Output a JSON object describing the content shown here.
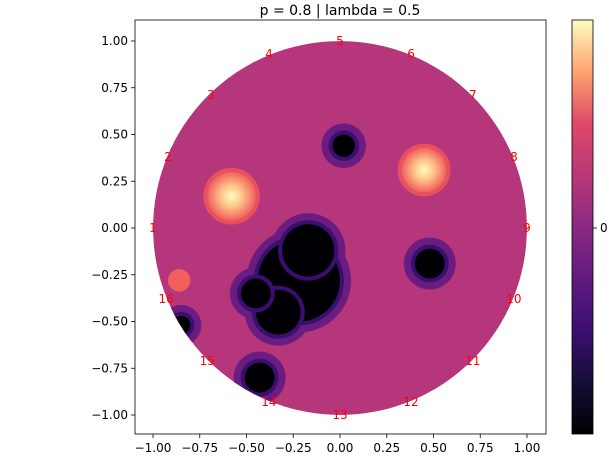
{
  "chart_data": {
    "type": "heatmap",
    "title": "p = 0.8 | lambda = 0.5",
    "xlabel": "",
    "ylabel": "",
    "xlim": [
      -1.1,
      1.1
    ],
    "ylim": [
      -1.1,
      1.1
    ],
    "x_ticks": [
      -1.0,
      -0.75,
      -0.5,
      -0.25,
      0.0,
      0.25,
      0.5,
      0.75,
      1.0
    ],
    "x_tick_labels": [
      "−1.00",
      "−0.75",
      "−0.50",
      "−0.25",
      "0.00",
      "0.25",
      "0.50",
      "0.75",
      "1.00"
    ],
    "y_ticks": [
      1.0,
      0.75,
      0.5,
      0.25,
      0.0,
      -0.25,
      -0.5,
      -0.75,
      -1.0
    ],
    "y_tick_labels": [
      "1.00",
      "0.75",
      "0.50",
      "0.25",
      "0.00",
      "−0.25",
      "−0.50",
      "−0.75",
      "−1.00"
    ],
    "colormap": "magma",
    "background_value_color": "#b5367a",
    "colorbar": {
      "tick_labels": [
        "0"
      ]
    },
    "electrodes": [
      {
        "label": "1",
        "x": -1.0,
        "y": 0.0
      },
      {
        "label": "2",
        "x": -0.92,
        "y": 0.38
      },
      {
        "label": "3",
        "x": -0.69,
        "y": 0.71
      },
      {
        "label": "4",
        "x": -0.38,
        "y": 0.93
      },
      {
        "label": "5",
        "x": 0.0,
        "y": 1.0
      },
      {
        "label": "6",
        "x": 0.38,
        "y": 0.93
      },
      {
        "label": "7",
        "x": 0.71,
        "y": 0.71
      },
      {
        "label": "8",
        "x": 0.93,
        "y": 0.38
      },
      {
        "label": "9",
        "x": 1.0,
        "y": 0.0
      },
      {
        "label": "10",
        "x": 0.93,
        "y": -0.38
      },
      {
        "label": "11",
        "x": 0.71,
        "y": -0.71
      },
      {
        "label": "12",
        "x": 0.38,
        "y": -0.93
      },
      {
        "label": "13",
        "x": 0.0,
        "y": -1.0
      },
      {
        "label": "14",
        "x": -0.38,
        "y": -0.93
      },
      {
        "label": "15",
        "x": -0.71,
        "y": -0.71
      },
      {
        "label": "16",
        "x": -0.93,
        "y": -0.38
      }
    ],
    "regions": [
      {
        "kind": "low",
        "x": -0.22,
        "y": -0.28,
        "radius": 0.22
      },
      {
        "kind": "low",
        "x": -0.17,
        "y": -0.12,
        "radius": 0.14
      },
      {
        "kind": "low",
        "x": -0.33,
        "y": -0.45,
        "radius": 0.12
      },
      {
        "kind": "low",
        "x": -0.45,
        "y": -0.35,
        "radius": 0.08
      },
      {
        "kind": "low",
        "x": -0.43,
        "y": -0.8,
        "radius": 0.08
      },
      {
        "kind": "low",
        "x": -0.85,
        "y": -0.52,
        "radius": 0.05
      },
      {
        "kind": "low",
        "x": 0.02,
        "y": 0.44,
        "radius": 0.06
      },
      {
        "kind": "low",
        "x": 0.48,
        "y": -0.19,
        "radius": 0.08
      },
      {
        "kind": "high",
        "x": -0.58,
        "y": 0.17,
        "radius": 0.13
      },
      {
        "kind": "high",
        "x": 0.45,
        "y": 0.31,
        "radius": 0.12
      },
      {
        "kind": "mid-high",
        "x": -0.86,
        "y": -0.28,
        "radius": 0.06
      }
    ]
  }
}
